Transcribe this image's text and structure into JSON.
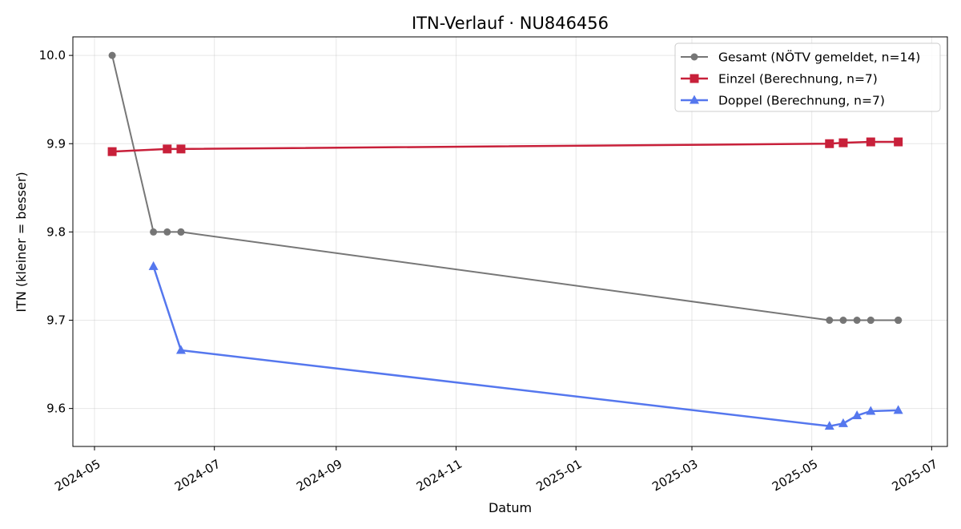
{
  "chart_data": {
    "type": "line",
    "title": "ITN-Verlauf · NU846456",
    "xlabel": "Datum",
    "ylabel": "ITN  (kleiner = besser)",
    "x_axis_type": "date",
    "xlim": [
      "2024-04-20",
      "2025-07-09"
    ],
    "ylim": [
      9.557,
      10.021
    ],
    "x_ticks": [
      "2024-05-01",
      "2024-07-01",
      "2024-09-01",
      "2024-11-01",
      "2025-01-01",
      "2025-03-01",
      "2025-05-01",
      "2025-07-01"
    ],
    "x_tick_labels": [
      "2024-05",
      "2024-07",
      "2024-09",
      "2024-11",
      "2025-01",
      "2025-03",
      "2025-05",
      "2025-07"
    ],
    "y_ticks": [
      9.6,
      9.7,
      9.8,
      9.9,
      10.0
    ],
    "y_tick_labels": [
      "9.6",
      "9.7",
      "9.8",
      "9.9",
      "10.0"
    ],
    "grid": true,
    "legend_position": "top-right",
    "series": [
      {
        "name": "Gesamt (NÖTV gemeldet, n=14)",
        "color": "#555555",
        "marker": "circle",
        "x": [
          "2024-05-10",
          "2024-05-31",
          "2024-06-07",
          "2024-06-14",
          "2024-06-14",
          "2025-05-10",
          "2025-05-17",
          "2025-05-24",
          "2025-05-31",
          "2025-05-31",
          "2025-06-14",
          "2025-06-14",
          "2025-06-14",
          "2025-06-14"
        ],
        "y": [
          10.0,
          9.8,
          9.8,
          9.8,
          9.8,
          9.7,
          9.7,
          9.7,
          9.7,
          9.7,
          9.7,
          9.7,
          9.7,
          9.7
        ]
      },
      {
        "name": "Einzel (Berechnung, n=7)",
        "color": "#c8203a",
        "marker": "square",
        "x": [
          "2024-05-10",
          "2024-06-07",
          "2024-06-14",
          "2025-05-10",
          "2025-05-17",
          "2025-05-31",
          "2025-06-14"
        ],
        "y": [
          9.891,
          9.894,
          9.894,
          9.9,
          9.901,
          9.902,
          9.902
        ]
      },
      {
        "name": "Doppel (Berechnung, n=7)",
        "color": "#5577ee",
        "marker": "triangle",
        "x": [
          "2024-05-31",
          "2024-06-14",
          "2025-05-10",
          "2025-05-17",
          "2025-05-24",
          "2025-05-31",
          "2025-06-14"
        ],
        "y": [
          9.761,
          9.666,
          9.58,
          9.583,
          9.592,
          9.597,
          9.598
        ]
      }
    ]
  }
}
